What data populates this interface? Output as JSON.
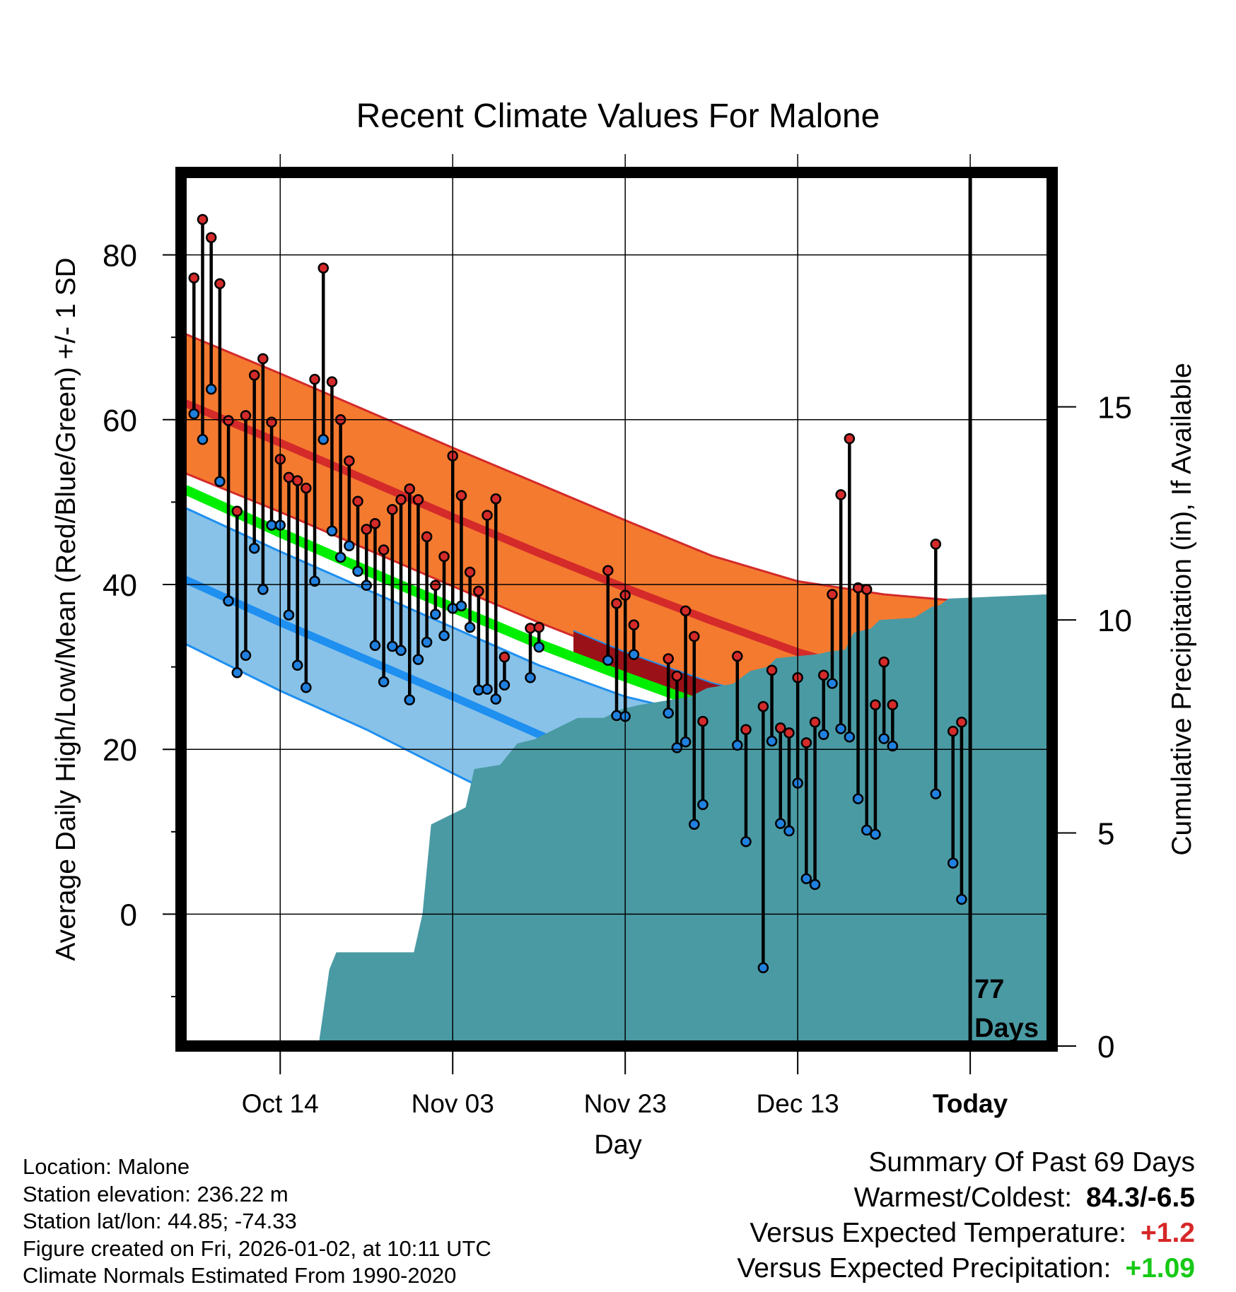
{
  "colors": {
    "normal_high_band": "#f47a30",
    "normal_high_line": "#d42a2a",
    "normal_low_band": "#88c2e8",
    "normal_low_line": "#1f8ff0",
    "mean_line": "#00ee00",
    "above_normal_mean": "#9a1218",
    "precip_fill": "#4a9aa4",
    "obs_high_marker": "#d42a2a",
    "obs_low_marker": "#2080e0",
    "frame": "#000000"
  },
  "chart_data": {
    "type": "line",
    "title": "Recent Climate Values For Malone",
    "xlabel": "Day",
    "ylabel": "Average Daily High/Low/Mean (Red/Blue/Green) +/- 1 SD",
    "y2label": "Cumulative Precipitation (in), If Available",
    "xlim": [
      -1.5,
      99.5
    ],
    "ylim": [
      -16,
      90
    ],
    "y2lim": [
      0,
      20.5
    ],
    "x_ticks": [
      {
        "x": 10,
        "label": "Oct 14"
      },
      {
        "x": 30,
        "label": "Nov 03"
      },
      {
        "x": 50,
        "label": "Nov 23"
      },
      {
        "x": 70,
        "label": "Dec 13"
      },
      {
        "x": 90,
        "label": "Today"
      }
    ],
    "y_ticks": [
      0,
      20,
      40,
      60,
      80
    ],
    "y_minor_ticks": [
      -10,
      10,
      30,
      50,
      70
    ],
    "y2_ticks": [
      0,
      5,
      10,
      15
    ],
    "today_x": 90,
    "today_label": [
      "77",
      "Days"
    ],
    "normal_x": [
      -1,
      10,
      20,
      30,
      40,
      50,
      60,
      70,
      80,
      90,
      99
    ],
    "normal_high": [
      62,
      57.2,
      52.7,
      48.2,
      43.8,
      39.6,
      35.6,
      31.8,
      28.7,
      26.5,
      25.3
    ],
    "normal_high_sd_upper": [
      70.4,
      65.6,
      61.1,
      56.6,
      52.2,
      47.8,
      43.5,
      40.4,
      38.8,
      37.9,
      37.6
    ],
    "normal_high_sd_lower": [
      53.5,
      48.8,
      44.3,
      39.8,
      35.4,
      31.3,
      27.8,
      23.7,
      19.4,
      15,
      12.9
    ],
    "normal_mean": [
      51.5,
      46.3,
      41.7,
      37.2,
      32.8,
      28.8,
      25,
      21.5,
      18.7,
      16.6,
      15.4
    ],
    "normal_low": [
      40.6,
      35.4,
      30.9,
      26.4,
      21.8,
      17.6,
      14,
      11.3,
      8.7,
      6.7,
      5.6
    ],
    "normal_low_sd_upper": [
      49.3,
      44,
      39.4,
      34.8,
      30.2,
      26.4,
      23.9,
      22.3,
      21.1,
      20.4,
      20
    ],
    "normal_low_sd_lower": [
      32.8,
      27.1,
      22.4,
      17.1,
      11.9,
      6,
      0.8,
      -6.3,
      -14,
      -16,
      -16
    ],
    "observed_mean": {
      "x": [
        44,
        50,
        60,
        70,
        80,
        90,
        99
      ],
      "y": [
        34.4,
        31.8,
        28.1,
        25.4,
        24.4,
        22.6,
        21.5
      ]
    },
    "observed": [
      {
        "x": 0,
        "high": 77.2,
        "low": 60.7
      },
      {
        "x": 1,
        "high": 84.3,
        "low": 57.6
      },
      {
        "x": 2,
        "high": 82.1,
        "low": 63.7
      },
      {
        "x": 3,
        "high": 76.5,
        "low": 52.5
      },
      {
        "x": 4,
        "high": 59.9,
        "low": 38
      },
      {
        "x": 5,
        "high": 48.9,
        "low": 29.3
      },
      {
        "x": 6,
        "high": 60.5,
        "low": 31.4
      },
      {
        "x": 7,
        "high": 65.4,
        "low": 44.4
      },
      {
        "x": 8,
        "high": 67.4,
        "low": 39.4
      },
      {
        "x": 9,
        "high": 59.7,
        "low": 47.2
      },
      {
        "x": 10,
        "high": 55.2,
        "low": 47.2
      },
      {
        "x": 11,
        "high": 53,
        "low": 36.3
      },
      {
        "x": 12,
        "high": 52.6,
        "low": 30.2
      },
      {
        "x": 13,
        "high": 51.7,
        "low": 27.5
      },
      {
        "x": 14,
        "high": 64.9,
        "low": 40.4
      },
      {
        "x": 15,
        "high": 78.4,
        "low": 57.6
      },
      {
        "x": 16,
        "high": 64.6,
        "low": 46.5
      },
      {
        "x": 17,
        "high": 60,
        "low": 43.3
      },
      {
        "x": 18,
        "high": 55,
        "low": 44.7
      },
      {
        "x": 19,
        "high": 50.1,
        "low": 41.6
      },
      {
        "x": 20,
        "high": 46.7,
        "low": 39.9
      },
      {
        "x": 21,
        "high": 47.4,
        "low": 32.6
      },
      {
        "x": 22,
        "high": 44.2,
        "low": 28.2
      },
      {
        "x": 23,
        "high": 49.1,
        "low": 32.5
      },
      {
        "x": 24,
        "high": 50.3,
        "low": 32
      },
      {
        "x": 25,
        "high": 51.6,
        "low": 26
      },
      {
        "x": 26,
        "high": 50.3,
        "low": 30.9
      },
      {
        "x": 27,
        "high": 45.8,
        "low": 33
      },
      {
        "x": 28,
        "high": 39.9,
        "low": 36.4
      },
      {
        "x": 29,
        "high": 43.4,
        "low": 33.8
      },
      {
        "x": 30,
        "high": 55.6,
        "low": 37.1
      },
      {
        "x": 31,
        "high": 50.8,
        "low": 37.4
      },
      {
        "x": 32,
        "high": 41.5,
        "low": 34.8
      },
      {
        "x": 33,
        "high": 39.2,
        "low": 27.2
      },
      {
        "x": 34,
        "high": 48.4,
        "low": 27.3
      },
      {
        "x": 35,
        "high": 50.4,
        "low": 26.1
      },
      {
        "x": 36,
        "high": 31.2,
        "low": 27.8
      },
      {
        "x": 39,
        "high": 34.7,
        "low": 28.7
      },
      {
        "x": 40,
        "high": 34.8,
        "low": 32.4
      },
      {
        "x": 48,
        "high": 41.7,
        "low": 30.8
      },
      {
        "x": 49,
        "high": 37.7,
        "low": 24.1
      },
      {
        "x": 50,
        "high": 38.7,
        "low": 24
      },
      {
        "x": 51,
        "high": 35.1,
        "low": 31.5
      },
      {
        "x": 55,
        "high": 31,
        "low": 24.4
      },
      {
        "x": 56,
        "high": 28.9,
        "low": 20.2
      },
      {
        "x": 57,
        "high": 36.8,
        "low": 20.9
      },
      {
        "x": 58,
        "high": 33.7,
        "low": 10.9
      },
      {
        "x": 59,
        "high": 23.4,
        "low": 13.3
      },
      {
        "x": 63,
        "high": 31.3,
        "low": 20.5
      },
      {
        "x": 64,
        "high": 22.4,
        "low": 8.8
      },
      {
        "x": 66,
        "high": 25.2,
        "low": -6.5
      },
      {
        "x": 67,
        "high": 29.6,
        "low": 21
      },
      {
        "x": 68,
        "high": 22.6,
        "low": 11
      },
      {
        "x": 69,
        "high": 22,
        "low": 10.1
      },
      {
        "x": 70,
        "high": 28.7,
        "low": 15.9
      },
      {
        "x": 71,
        "high": 20.8,
        "low": 4.3
      },
      {
        "x": 72,
        "high": 23.3,
        "low": 3.6
      },
      {
        "x": 73,
        "high": 29,
        "low": 21.8
      },
      {
        "x": 74,
        "high": 38.8,
        "low": 28
      },
      {
        "x": 75,
        "high": 50.9,
        "low": 22.5
      },
      {
        "x": 76,
        "high": 57.7,
        "low": 21.5
      },
      {
        "x": 77,
        "high": 39.6,
        "low": 14
      },
      {
        "x": 78,
        "high": 39.4,
        "low": 10.2
      },
      {
        "x": 79,
        "high": 25.4,
        "low": 9.7
      },
      {
        "x": 80,
        "high": 30.6,
        "low": 21.3
      },
      {
        "x": 81,
        "high": 25.4,
        "low": 20.4
      },
      {
        "x": 86,
        "high": 44.9,
        "low": 14.6
      },
      {
        "x": 88,
        "high": 22.2,
        "low": 6.2
      },
      {
        "x": 89,
        "high": 23.3,
        "low": 1.8
      }
    ],
    "cumulative_precip": {
      "x": [
        -1,
        9.5,
        14.5,
        15.7,
        16.5,
        25.5,
        26.5,
        27.5,
        29.5,
        31.5,
        32.5,
        35.5,
        37.5,
        39.5,
        41.5,
        44.5,
        47.5,
        49.5,
        51.5,
        57.5,
        59.5,
        62.5,
        64.5,
        66.5,
        67.5,
        72.5,
        73.5,
        75.5,
        76.5,
        78.5,
        79.5,
        83.5,
        85.5,
        86.5,
        87.5,
        99
      ],
      "y": [
        0,
        0.05,
        0.1,
        1.8,
        2.2,
        2.2,
        3.1,
        5.2,
        5.4,
        5.6,
        6.5,
        6.6,
        7.1,
        7.2,
        7.4,
        7.7,
        7.7,
        7.9,
        8,
        8.2,
        8.4,
        8.5,
        8.8,
        8.9,
        9.1,
        9.2,
        9.25,
        9.3,
        9.7,
        9.8,
        10,
        10.05,
        10.3,
        10.35,
        10.5,
        10.6
      ]
    }
  },
  "footer": {
    "location": "Location: Malone",
    "elevation": "Station elevation: 236.22 m",
    "latlon": "Station lat/lon: 44.85; -74.33",
    "created": "Figure created on Fri, 2026-01-02, at 10:11 UTC",
    "normals": "Climate Normals Estimated From 1990-2020"
  },
  "summary": {
    "title": "Summary Of Past 69 Days",
    "warmest_coldest_label": "Warmest/Coldest:",
    "warmest_coldest_value": "84.3/-6.5",
    "temp_label": "Versus Expected Temperature:",
    "temp_value": "+1.2",
    "precip_label": "Versus Expected Precipitation:",
    "precip_value": "+1.09"
  }
}
